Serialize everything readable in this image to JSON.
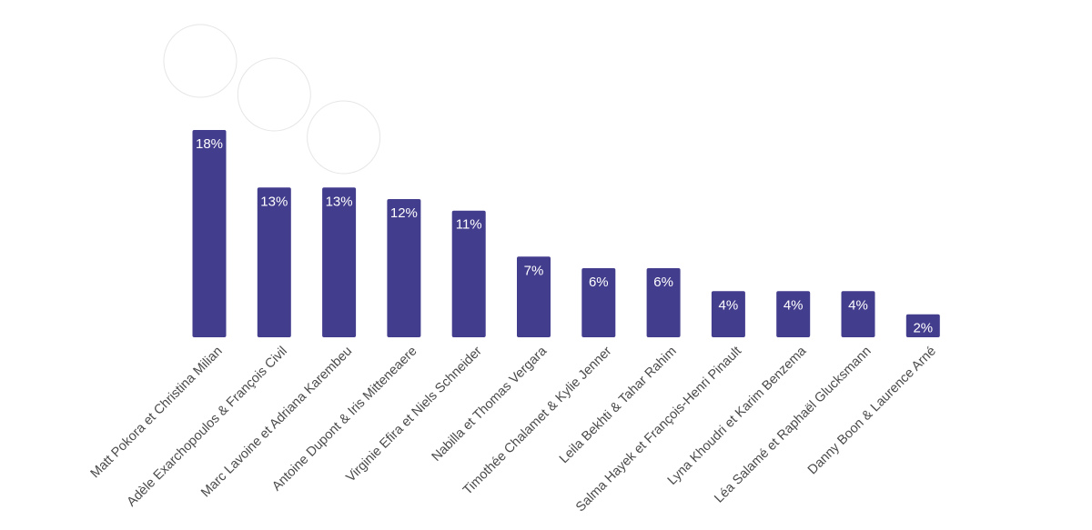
{
  "chart_data": {
    "type": "bar",
    "categories": [
      "Matt Pokora et Christina Milian",
      "Adèle Exarchopoulos & François Civil",
      "Marc Lavoine et Adriana Karembeu",
      "Antoine Dupont & Iris Mitteneaere",
      "Virginie Efira et Niels Schneider",
      "Nabilla et Thomas Vergara",
      "Timothée Chalamet & Kylie Jenner",
      "Leila Bekhti & Tahar Rahim",
      "Salma Hayek et François-Henri Pinault",
      "Lyna Khoudri et Karim Benzema",
      "Léa Salamé et Raphaël Glucksmann",
      "Danny Boon & Laurence Arné"
    ],
    "values": [
      18,
      13,
      13,
      12,
      11,
      7,
      6,
      6,
      4,
      4,
      4,
      2
    ],
    "value_labels": [
      "18%",
      "13%",
      "13%",
      "12%",
      "11%",
      "7%",
      "6%",
      "6%",
      "4%",
      "4%",
      "4%",
      "2%"
    ],
    "title": "",
    "xlabel": "",
    "ylabel": "",
    "ylim": [
      0,
      18
    ],
    "grid": false,
    "legend": "none",
    "bar_color": "#433d8d",
    "label_color": "#ffffff",
    "category_label_color": "#4a4a4a",
    "photos": [
      {
        "category_index": 0,
        "depicts": "couple-photo"
      },
      {
        "category_index": 1,
        "depicts": "couple-photo"
      },
      {
        "category_index": 2,
        "depicts": "couple-photo"
      }
    ]
  }
}
